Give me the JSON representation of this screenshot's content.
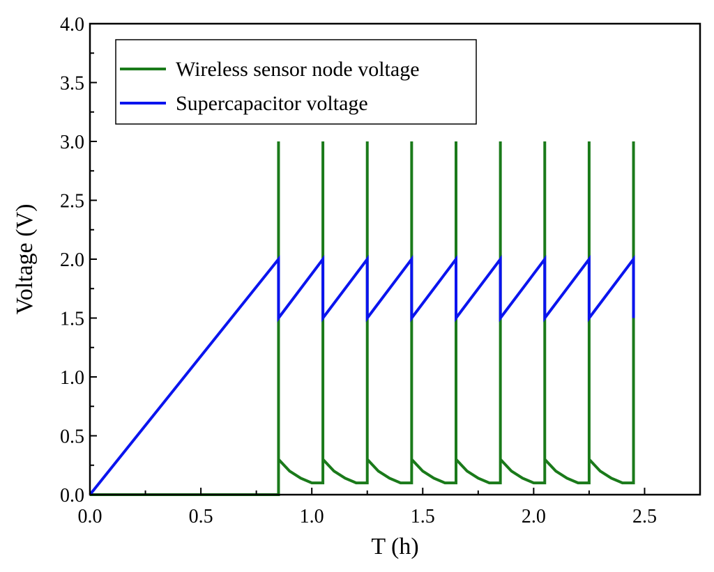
{
  "chart_data": {
    "type": "line",
    "xlabel": "T (h)",
    "ylabel": "Voltage (V)",
    "xlim": [
      0,
      2.75
    ],
    "ylim": [
      0,
      4.0
    ],
    "x_ticks": [
      "0.0",
      "0.5",
      "1.0",
      "1.5",
      "2.0",
      "2.5"
    ],
    "y_ticks": [
      "0.0",
      "0.5",
      "1.0",
      "1.5",
      "2.0",
      "2.5",
      "3.0",
      "3.5",
      "4.0"
    ],
    "grid": false,
    "legend_position": "top-left",
    "series": [
      {
        "name": "Wireless sensor node voltage",
        "color": "#1a7a1a",
        "x": [
          0,
          0.85,
          0.85,
          0.85,
          0.85,
          0.9,
          0.95,
          1.0,
          1.05,
          1.05,
          1.05,
          1.1,
          1.15,
          1.2,
          1.25,
          1.25,
          1.25,
          1.3,
          1.35,
          1.4,
          1.45,
          1.45,
          1.45,
          1.5,
          1.55,
          1.6,
          1.65,
          1.65,
          1.65,
          1.7,
          1.75,
          1.8,
          1.85,
          1.85,
          1.85,
          1.9,
          1.95,
          2.0,
          2.05,
          2.05,
          2.05,
          2.1,
          2.15,
          2.2,
          2.25,
          2.25,
          2.25,
          2.3,
          2.35,
          2.4,
          2.45,
          2.45,
          2.45
        ],
        "y": [
          0,
          0,
          3.0,
          1.5,
          0.3,
          0.2,
          0.14,
          0.1,
          0.1,
          3.0,
          0.3,
          0.2,
          0.14,
          0.1,
          0.1,
          3.0,
          0.3,
          0.2,
          0.14,
          0.1,
          0.1,
          3.0,
          0.3,
          0.2,
          0.14,
          0.1,
          0.1,
          3.0,
          0.3,
          0.2,
          0.14,
          0.1,
          0.1,
          3.0,
          0.3,
          0.2,
          0.14,
          0.1,
          0.1,
          3.0,
          0.3,
          0.2,
          0.14,
          0.1,
          0.1,
          3.0,
          0.3,
          0.2,
          0.14,
          0.1,
          0.1,
          3.0,
          1.5
        ]
      },
      {
        "name": "Supercapacitor voltage",
        "color": "#0a14ee",
        "x": [
          0,
          0.85,
          0.85,
          1.05,
          1.05,
          1.25,
          1.25,
          1.45,
          1.45,
          1.65,
          1.65,
          1.85,
          1.85,
          2.05,
          2.05,
          2.25,
          2.25,
          2.45,
          2.45
        ],
        "y": [
          0,
          2.0,
          1.5,
          2.0,
          1.5,
          2.0,
          1.5,
          2.0,
          1.5,
          2.0,
          1.5,
          2.0,
          1.5,
          2.0,
          1.5,
          2.0,
          1.5,
          2.0,
          1.5
        ]
      }
    ]
  }
}
